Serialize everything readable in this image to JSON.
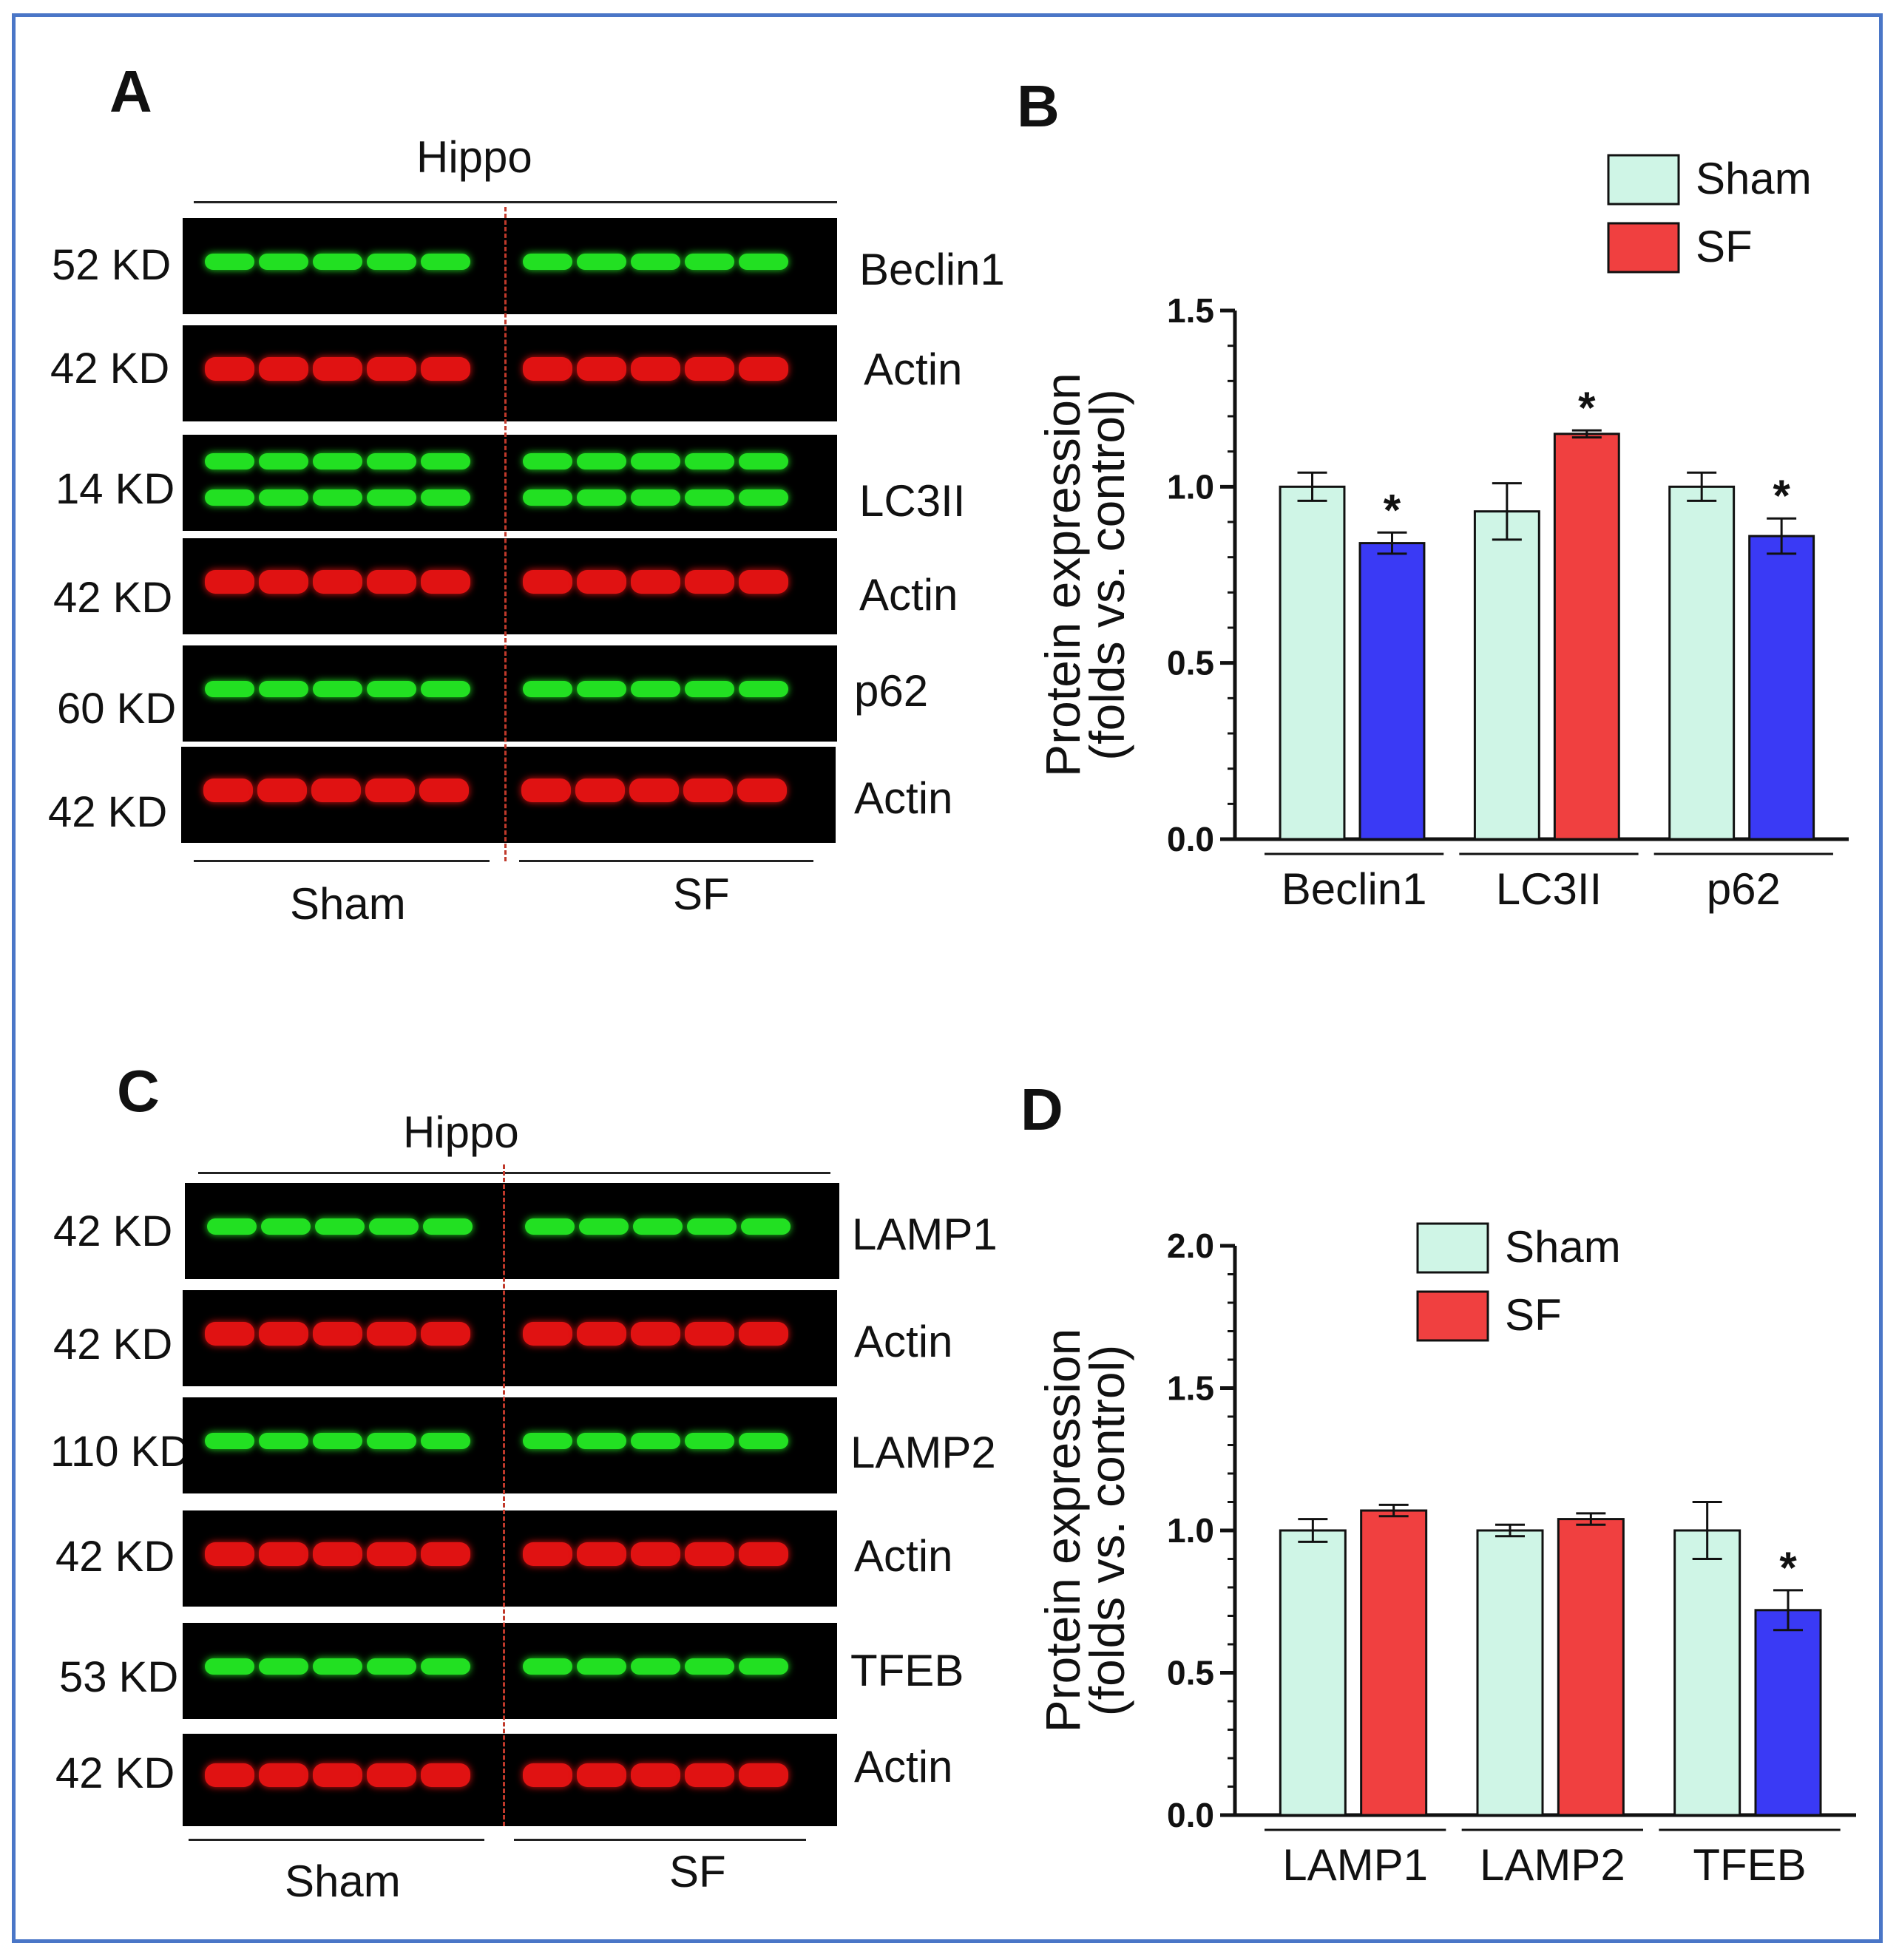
{
  "panels": {
    "a": "A",
    "b": "B",
    "c": "C",
    "d": "D"
  },
  "blot_a": {
    "region": "Hippo",
    "groups": [
      "Sham",
      "SF"
    ],
    "rows": [
      {
        "kd": "52 KD",
        "protein": "Beclin1",
        "color": "green"
      },
      {
        "kd": "42 KD",
        "protein": "Actin",
        "color": "red"
      },
      {
        "kd": "14 KD",
        "protein": "LC3II",
        "color": "green"
      },
      {
        "kd": "42 KD",
        "protein": "Actin",
        "color": "red"
      },
      {
        "kd": "60 KD",
        "protein": "p62",
        "color": "green"
      },
      {
        "kd": "42 KD",
        "protein": "Actin",
        "color": "red"
      }
    ]
  },
  "blot_c": {
    "region": "Hippo",
    "groups": [
      "Sham",
      "SF"
    ],
    "rows": [
      {
        "kd": "42 KD",
        "protein": "LAMP1",
        "color": "green"
      },
      {
        "kd": "42 KD",
        "protein": "Actin",
        "color": "red"
      },
      {
        "kd": "110 KD",
        "protein": "LAMP2",
        "color": "green"
      },
      {
        "kd": "42 KD",
        "protein": "Actin",
        "color": "red"
      },
      {
        "kd": "53 KD",
        "protein": "TFEB",
        "color": "green"
      },
      {
        "kd": "42 KD",
        "protein": "Actin",
        "color": "red"
      }
    ]
  },
  "colors": {
    "sham": "#cff5e6",
    "sf_up": "#f04040",
    "sf_down": "#3a3af5",
    "green_band": "#22e022",
    "red_band": "#e01212"
  },
  "chart_data": [
    {
      "id": "B",
      "type": "bar",
      "categories": [
        "Beclin1",
        "LC3II",
        "p62"
      ],
      "series": [
        {
          "name": "Sham",
          "values": [
            1.0,
            0.93,
            1.0
          ],
          "errors": [
            0.04,
            0.08,
            0.04
          ]
        },
        {
          "name": "SF",
          "values": [
            0.84,
            1.15,
            0.86
          ],
          "errors": [
            0.03,
            0.01,
            0.05
          ]
        }
      ],
      "sf_bar_colors": [
        "#3a3af5",
        "#f04040",
        "#3a3af5"
      ],
      "significance": [
        "*",
        "*",
        "*"
      ],
      "ylabel": "Protein expression",
      "ylabel2": "(folds vs. control)",
      "ylim": [
        0,
        1.5
      ],
      "ticks": [
        "0.0",
        "0.5",
        "1.0",
        "1.5"
      ],
      "legend": [
        "Sham",
        "SF"
      ],
      "legend_position": "top-right"
    },
    {
      "id": "D",
      "type": "bar",
      "categories": [
        "LAMP1",
        "LAMP2",
        "TFEB"
      ],
      "series": [
        {
          "name": "Sham",
          "values": [
            1.0,
            1.0,
            1.0
          ],
          "errors": [
            0.04,
            0.02,
            0.1
          ]
        },
        {
          "name": "SF",
          "values": [
            1.07,
            1.04,
            0.72
          ],
          "errors": [
            0.02,
            0.02,
            0.07
          ]
        }
      ],
      "sf_bar_colors": [
        "#f04040",
        "#f04040",
        "#3a3af5"
      ],
      "significance": [
        "",
        "",
        "*"
      ],
      "ylabel": "Protein expression",
      "ylabel2": "(folds vs. control)",
      "ylim": [
        0,
        2.0
      ],
      "ticks": [
        "0.0",
        "0.5",
        "1.0",
        "1.5",
        "2.0"
      ],
      "legend": [
        "Sham",
        "SF"
      ],
      "legend_position": "top-center"
    }
  ]
}
